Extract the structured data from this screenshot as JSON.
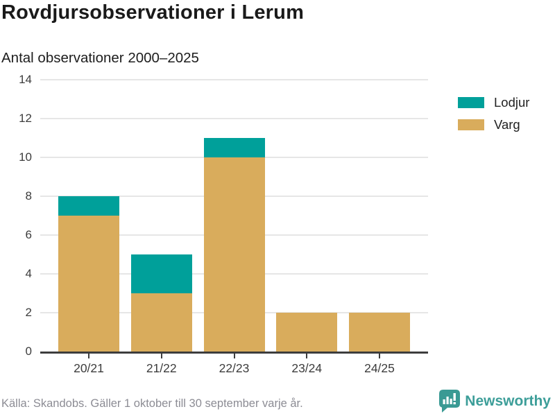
{
  "page": {
    "title": "Rovdjursobservationer i Lerum",
    "subtitle": "Antal observationer 2000–2025",
    "source": "Källa: Skandobs. Gäller 1 oktober till 30 september varje år.",
    "brand": {
      "name": "Newsworthy",
      "color": "#3d9e99"
    }
  },
  "colors": {
    "lodjur": "#00a09a",
    "varg": "#d9ac5c",
    "grid": "#e6e6e6",
    "axis": "#3d3d3d",
    "title_text": "#1a1a1a",
    "tick_text": "#3c3c3c",
    "source_text": "#8c8c94"
  },
  "chart_data": {
    "type": "bar",
    "stacked": true,
    "title": "Rovdjursobservationer i Lerum",
    "subtitle": "Antal observationer 2000–2025",
    "categories": [
      "20/21",
      "21/22",
      "22/23",
      "23/24",
      "24/25"
    ],
    "series": [
      {
        "name": "Varg",
        "color": "#d9ac5c",
        "values": [
          7,
          3,
          10,
          2,
          2
        ]
      },
      {
        "name": "Lodjur",
        "color": "#00a09a",
        "values": [
          1,
          2,
          1,
          0,
          0
        ]
      }
    ],
    "totals": [
      8,
      5,
      11,
      2,
      2
    ],
    "xlabel": "",
    "ylabel": "Antal observationer",
    "ylim": [
      0,
      14
    ],
    "yticks": [
      0,
      2,
      4,
      6,
      8,
      10,
      12,
      14
    ],
    "grid": true,
    "legend": [
      "Lodjur",
      "Varg"
    ],
    "legend_position": "right-top"
  }
}
